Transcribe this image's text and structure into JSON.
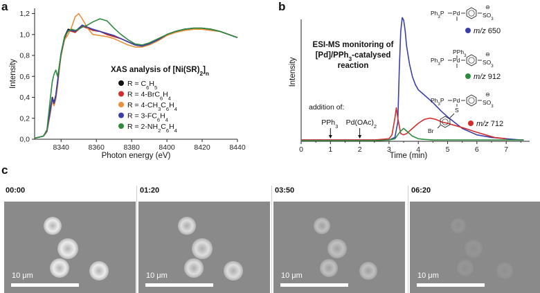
{
  "panels": {
    "a": "a",
    "b": "b",
    "c": "c"
  },
  "chart_data": [
    {
      "type": "line",
      "title": "XAS analysis of [Ni(SR)",
      "title_sub": "2",
      "title_tail": "]",
      "title_sub2": "n",
      "xlabel": "Photon energy (eV)",
      "ylabel": "Intensity",
      "xlim": [
        8325,
        8440
      ],
      "ylim": [
        0,
        1.25
      ],
      "xticks": [
        8340,
        8360,
        8380,
        8400,
        8420,
        8440
      ],
      "xtick_labels": [
        "8340",
        "8360",
        "8380",
        "8400",
        "8420",
        "8440"
      ],
      "yticks": [
        0,
        0.2,
        0.4,
        0.6,
        0.8,
        1.0,
        1.2
      ],
      "ytick_labels": [
        "0,0",
        "0,2",
        "0,4",
        "0,6",
        "0,8",
        "1,0",
        "1,2"
      ],
      "legend": [
        {
          "parts": [
            [
              "R = C",
              ""
            ],
            [
              "6",
              "sub"
            ],
            [
              "H",
              ""
            ],
            [
              "5",
              "sub"
            ]
          ],
          "color": "#111111"
        },
        {
          "parts": [
            [
              "R = 4-BrC",
              ""
            ],
            [
              "6",
              "sub"
            ],
            [
              "H",
              ""
            ],
            [
              "4",
              "sub"
            ]
          ],
          "color": "#d42b2b"
        },
        {
          "parts": [
            [
              "R = 4-CH",
              ""
            ],
            [
              "3",
              "sub"
            ],
            [
              "C",
              ""
            ],
            [
              "6",
              "sub"
            ],
            [
              "H",
              ""
            ],
            [
              "4",
              "sub"
            ]
          ],
          "color": "#e8903a"
        },
        {
          "parts": [
            [
              "R = 3-FC",
              ""
            ],
            [
              "6",
              "sub"
            ],
            [
              "H",
              ""
            ],
            [
              "4",
              "sub"
            ]
          ],
          "color": "#3a3fa8"
        },
        {
          "parts": [
            [
              "R = 2-NH",
              ""
            ],
            [
              "2",
              "sub"
            ],
            [
              "C",
              ""
            ],
            [
              "6",
              "sub"
            ],
            [
              "H",
              ""
            ],
            [
              "4",
              "sub"
            ]
          ],
          "color": "#2e8b3e"
        }
      ],
      "series": [
        {
          "color": "#111111",
          "x": [
            8325,
            8330,
            8332,
            8334,
            8335,
            8336,
            8337,
            8338,
            8339,
            8340,
            8342,
            8344,
            8346,
            8348,
            8350,
            8352,
            8355,
            8358,
            8362,
            8366,
            8370,
            8374,
            8378,
            8382,
            8386,
            8390,
            8395,
            8400,
            8405,
            8410,
            8415,
            8420,
            8425,
            8430,
            8435,
            8440
          ],
          "y": [
            0.01,
            0.03,
            0.08,
            0.3,
            0.4,
            0.35,
            0.42,
            0.55,
            0.7,
            0.82,
            0.98,
            1.05,
            1.04,
            1.02,
            1.05,
            1.08,
            1.06,
            1.04,
            1.03,
            1.0,
            0.98,
            0.96,
            0.93,
            0.9,
            0.89,
            0.91,
            0.95,
            1.0,
            1.03,
            1.05,
            1.06,
            1.06,
            1.05,
            1.03,
            1.0,
            0.97
          ]
        },
        {
          "color": "#d42b2b",
          "x": [
            8325,
            8330,
            8332,
            8334,
            8335,
            8336,
            8337,
            8338,
            8339,
            8340,
            8342,
            8344,
            8346,
            8348,
            8350,
            8352,
            8355,
            8358,
            8362,
            8366,
            8370,
            8374,
            8378,
            8382,
            8386,
            8390,
            8395,
            8400,
            8405,
            8410,
            8415,
            8420,
            8425,
            8430,
            8435,
            8440
          ],
          "y": [
            0.01,
            0.03,
            0.07,
            0.26,
            0.37,
            0.33,
            0.4,
            0.52,
            0.68,
            0.8,
            0.96,
            1.04,
            1.03,
            1.02,
            1.05,
            1.08,
            1.06,
            1.04,
            1.03,
            1.0,
            0.98,
            0.96,
            0.93,
            0.9,
            0.89,
            0.91,
            0.95,
            1.0,
            1.03,
            1.04,
            1.05,
            1.05,
            1.04,
            1.03,
            1.0,
            0.97
          ]
        },
        {
          "color": "#e8903a",
          "x": [
            8325,
            8330,
            8332,
            8334,
            8335,
            8336,
            8337,
            8338,
            8339,
            8340,
            8342,
            8344,
            8346,
            8348,
            8350,
            8352,
            8355,
            8358,
            8362,
            8366,
            8370,
            8374,
            8378,
            8382,
            8386,
            8390,
            8395,
            8400,
            8405,
            8410,
            8415,
            8420,
            8425,
            8430,
            8435,
            8440
          ],
          "y": [
            0.01,
            0.03,
            0.07,
            0.28,
            0.36,
            0.32,
            0.38,
            0.5,
            0.66,
            0.8,
            0.95,
            1.0,
            1.07,
            1.17,
            1.2,
            1.15,
            1.06,
            1.0,
            0.99,
            0.98,
            0.96,
            0.93,
            0.9,
            0.88,
            0.88,
            0.9,
            0.94,
            0.99,
            1.02,
            1.04,
            1.05,
            1.05,
            1.04,
            1.03,
            1.0,
            0.97
          ]
        },
        {
          "color": "#3a3fa8",
          "x": [
            8325,
            8330,
            8332,
            8334,
            8335,
            8336,
            8337,
            8338,
            8339,
            8340,
            8342,
            8344,
            8346,
            8348,
            8350,
            8352,
            8355,
            8358,
            8362,
            8366,
            8370,
            8374,
            8378,
            8382,
            8386,
            8390,
            8395,
            8400,
            8405,
            8410,
            8415,
            8420,
            8425,
            8430,
            8435,
            8440
          ],
          "y": [
            0.01,
            0.03,
            0.08,
            0.29,
            0.39,
            0.34,
            0.41,
            0.54,
            0.69,
            0.81,
            0.97,
            1.04,
            1.04,
            1.03,
            1.06,
            1.09,
            1.07,
            1.05,
            1.03,
            1.01,
            0.99,
            0.96,
            0.93,
            0.9,
            0.89,
            0.91,
            0.95,
            1.0,
            1.03,
            1.05,
            1.06,
            1.06,
            1.05,
            1.03,
            1.0,
            0.97
          ]
        },
        {
          "color": "#2e8b3e",
          "x": [
            8325,
            8330,
            8332,
            8334,
            8335,
            8336,
            8337,
            8338,
            8339,
            8340,
            8342,
            8344,
            8346,
            8348,
            8350,
            8352,
            8355,
            8358,
            8362,
            8366,
            8370,
            8374,
            8378,
            8382,
            8386,
            8390,
            8395,
            8400,
            8405,
            8410,
            8415,
            8420,
            8425,
            8430,
            8435,
            8440
          ],
          "y": [
            0.01,
            0.03,
            0.09,
            0.4,
            0.55,
            0.62,
            0.66,
            0.6,
            0.7,
            0.82,
            0.98,
            1.03,
            1.05,
            1.04,
            1.05,
            1.07,
            1.09,
            1.12,
            1.15,
            1.13,
            1.06,
            1.0,
            0.95,
            0.91,
            0.9,
            0.92,
            0.96,
            1.0,
            1.03,
            1.05,
            1.06,
            1.06,
            1.05,
            1.03,
            1.0,
            0.97
          ]
        }
      ]
    },
    {
      "type": "line",
      "title_lines": [
        [
          [
            "ESI-MS monitoring of",
            ""
          ]
        ],
        [
          [
            "[Pd]/PPh",
            ""
          ],
          [
            "3",
            "sub"
          ],
          [
            "-catalysed",
            ""
          ]
        ],
        [
          [
            "reaction",
            ""
          ]
        ]
      ],
      "xlabel": "Time (min)",
      "ylabel": "Intensity",
      "xlim": [
        0,
        7.8
      ],
      "ylim": [
        0,
        1
      ],
      "xticks": [
        0,
        1,
        2,
        3,
        4,
        5,
        6,
        7
      ],
      "xtick_labels": [
        "0",
        "1",
        "2",
        "3",
        "4",
        "5",
        "6",
        "7"
      ],
      "annotations": {
        "addition": "addition of:",
        "pph3": [
          [
            "PPh",
            ""
          ],
          [
            "3",
            "sub"
          ]
        ],
        "pdoac": [
          [
            "Pd(OAc)",
            ""
          ],
          [
            "2",
            "sub"
          ]
        ],
        "pph3_time": 1,
        "pdoac_time": 2
      },
      "species": [
        {
          "formula": "Ph3P–Pd–C6H4–SO3⁻",
          "label": "m/z 650",
          "color": "#3a3fa8"
        },
        {
          "formula": "Ph3P–Pd(PPh3)–C6H4–SO3⁻",
          "label": "m/z 912",
          "color": "#2e8b3e"
        },
        {
          "formula": "Ph3P–Pd(S–C6H4Br)–C6H4–SO3⁻",
          "label": "m/z 712",
          "color": "#d42b2b"
        }
      ],
      "chem_text": {
        "ph3p": [
          [
            "Ph",
            ""
          ],
          [
            "3",
            "sub"
          ],
          [
            "P",
            ""
          ]
        ],
        "pd": "Pd",
        "pph3": [
          [
            "PPh",
            ""
          ],
          [
            "3",
            "sub"
          ]
        ],
        "so3": [
          [
            "SO",
            ""
          ],
          [
            "3",
            "sub"
          ]
        ],
        "minus": "⊖",
        "s": "S",
        "br": "Br",
        "mz": "m/z",
        "mz650": "650",
        "mz912": "912",
        "mz712": "712"
      },
      "series": [
        {
          "color": "#3a3fa8",
          "x": [
            0,
            0.5,
            1,
            1.5,
            2,
            2.5,
            3,
            3.2,
            3.3,
            3.35,
            3.4,
            3.45,
            3.5,
            3.55,
            3.6,
            3.7,
            3.8,
            3.9,
            4.0,
            4.2,
            4.5,
            4.8,
            5.0,
            5.5,
            6.0,
            6.5,
            7.0,
            7.5,
            7.6
          ],
          "y": [
            0.01,
            0.01,
            0.01,
            0.01,
            0.01,
            0.01,
            0.01,
            0.03,
            0.15,
            0.55,
            0.85,
            0.96,
            0.94,
            0.86,
            0.74,
            0.6,
            0.5,
            0.44,
            0.4,
            0.36,
            0.3,
            0.23,
            0.19,
            0.1,
            0.05,
            0.03,
            0.02,
            0.01,
            0.01
          ]
        },
        {
          "color": "#d42b2b",
          "x": [
            0,
            1,
            2,
            2.5,
            3,
            3.1,
            3.2,
            3.25,
            3.3,
            3.4,
            3.5,
            3.6,
            3.8,
            4.0,
            4.2,
            4.4,
            4.6,
            4.8,
            5.0,
            5.3,
            5.6,
            6.0,
            6.3,
            6.6,
            7.0
          ],
          "y": [
            0.01,
            0.01,
            0.01,
            0.01,
            0.02,
            0.05,
            0.18,
            0.26,
            0.18,
            0.06,
            0.05,
            0.06,
            0.1,
            0.14,
            0.17,
            0.18,
            0.17,
            0.15,
            0.14,
            0.12,
            0.1,
            0.07,
            0.05,
            0.03,
            0.02
          ]
        },
        {
          "color": "#2e8b3e",
          "x": [
            0,
            1,
            2,
            2.5,
            3,
            3.2,
            3.3,
            3.4,
            3.5,
            3.6,
            3.7,
            3.8,
            3.9,
            4.0,
            4.2,
            4.5,
            5.0,
            5.5,
            6.0,
            7.0,
            7.6
          ],
          "y": [
            0.005,
            0.005,
            0.005,
            0.005,
            0.01,
            0.02,
            0.05,
            0.08,
            0.1,
            0.08,
            0.06,
            0.04,
            0.03,
            0.02,
            0.015,
            0.01,
            0.01,
            0.01,
            0.01,
            0.01,
            0.01
          ]
        }
      ]
    }
  ],
  "micrographs": {
    "frames": [
      {
        "time": "00:00",
        "brightness": 1.0
      },
      {
        "time": "01:20",
        "brightness": 0.85
      },
      {
        "time": "03:50",
        "brightness": 0.55
      },
      {
        "time": "06:20",
        "brightness": 0.12
      }
    ],
    "scale_label": "10 μm",
    "cell_color": "#f2f2f2",
    "background": "#8a8a8a"
  }
}
